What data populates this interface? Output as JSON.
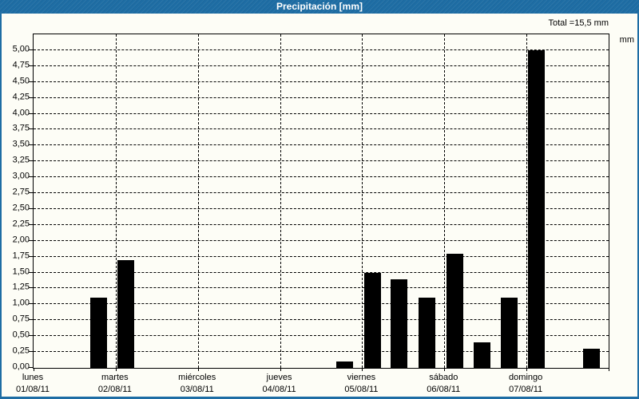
{
  "title_bar": {
    "title": "Precipitación [mm]"
  },
  "header": {
    "total_label": "Total =15,5 mm"
  },
  "chart_data": {
    "type": "bar",
    "title": "Precipitación [mm]",
    "ylabel": "mm",
    "total_mm": 15.5,
    "legend": "none",
    "y_axis": {
      "min": 0,
      "max": 5.25,
      "tick_step": 0.25,
      "grid": "dashed-horizontal",
      "tick_values": [
        5.0,
        4.75,
        4.5,
        4.25,
        4.0,
        3.75,
        3.5,
        3.25,
        3.0,
        2.75,
        2.5,
        2.25,
        2.0,
        1.75,
        1.5,
        1.25,
        1.0,
        0.75,
        0.5,
        0.25,
        0.0
      ],
      "tick_labels": [
        "5,00",
        "4,75",
        "4,50",
        "4,25",
        "4,00",
        "3,75",
        "3,50",
        "3,25",
        "3,00",
        "2,75",
        "2,50",
        "2,25",
        "2,00",
        "1,75",
        "1,50",
        "1,25",
        "1,00",
        "0,75",
        "0,50",
        "0,25",
        "0,00"
      ]
    },
    "x_axis": {
      "num_days": 7,
      "grid": "dashed-vertical-at-day-boundaries",
      "categories": [
        {
          "name": "lunes",
          "date": "01/08/11"
        },
        {
          "name": "martes",
          "date": "02/08/11"
        },
        {
          "name": "miércoles",
          "date": "03/08/11"
        },
        {
          "name": "jueves",
          "date": "04/08/11"
        },
        {
          "name": "viernes",
          "date": "05/08/11"
        },
        {
          "name": "sábado",
          "date": "06/08/11"
        },
        {
          "name": "domingo",
          "date": "07/08/11"
        }
      ]
    },
    "bars": [
      {
        "day": "lunes",
        "x_frac": 0.0986,
        "value": 1.1
      },
      {
        "day": "martes",
        "x_frac": 0.1452,
        "value": 1.7
      },
      {
        "day": "jueves",
        "x_frac": 0.5264,
        "value": 0.1
      },
      {
        "day": "viernes",
        "x_frac": 0.575,
        "value": 1.5
      },
      {
        "day": "viernes",
        "x_frac": 0.6208,
        "value": 1.4
      },
      {
        "day": "viernes",
        "x_frac": 0.6694,
        "value": 1.1
      },
      {
        "day": "sábado",
        "x_frac": 0.7181,
        "value": 1.8
      },
      {
        "day": "sábado",
        "x_frac": 0.7653,
        "value": 0.4
      },
      {
        "day": "sábado",
        "x_frac": 0.8125,
        "value": 1.1
      },
      {
        "day": "domingo",
        "x_frac": 0.8597,
        "value": 5.0
      },
      {
        "day": "domingo",
        "x_frac": 0.9556,
        "value": 0.3
      }
    ],
    "bar_width_frac": 0.0292,
    "bar_color": "#000000",
    "frame_color": "#1e6da4",
    "background_color": "#fdfdf6"
  }
}
